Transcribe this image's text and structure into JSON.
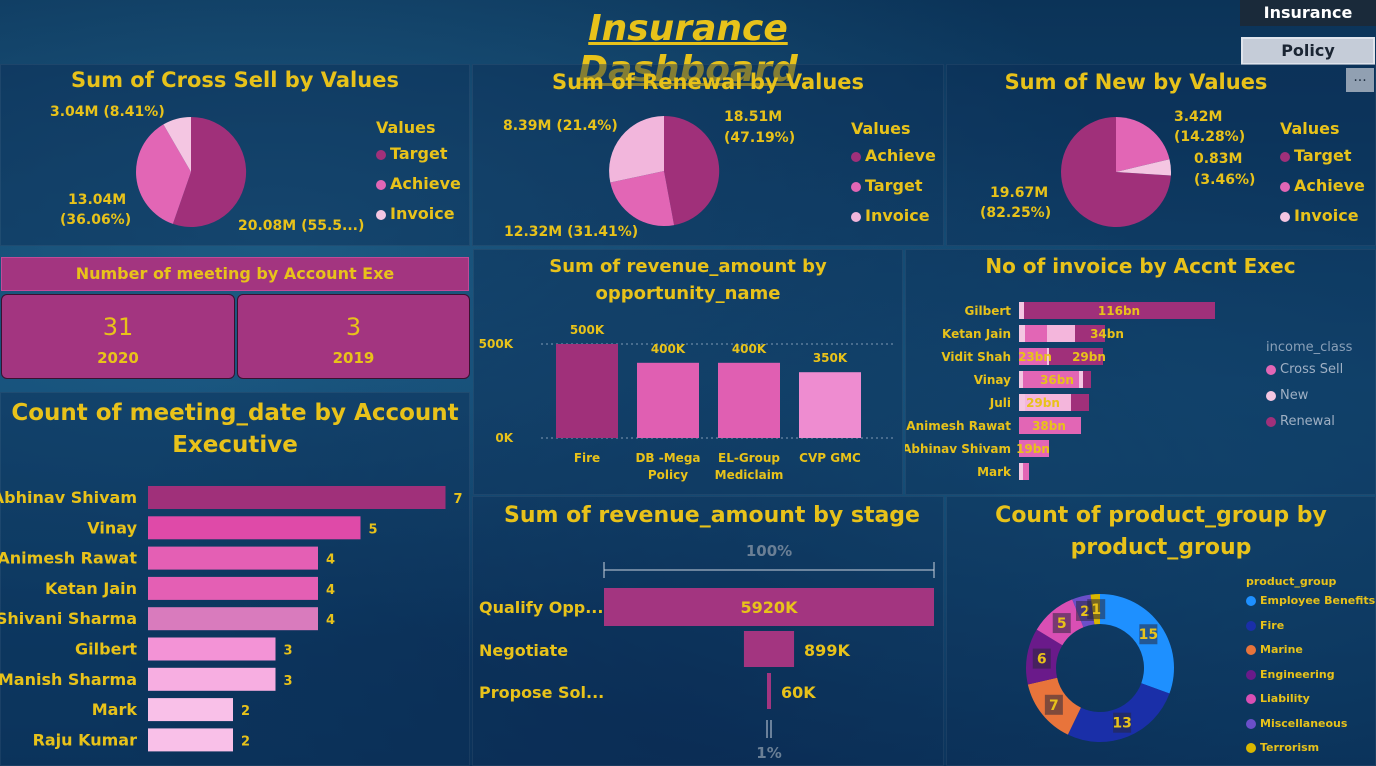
{
  "header": {
    "title": "Insurance Dashboard"
  },
  "nav": {
    "insurance_label": "Insurance",
    "policy_label": "Policy",
    "more_label": "..."
  },
  "colors": {
    "gold": "#e8c21a",
    "magenta": "#a0307a",
    "pink": "#e266b5",
    "light_pink": "#f4b6dc"
  },
  "cross_sell": {
    "title": "Sum of Cross Sell by Values",
    "legend_title": "Values",
    "legend": [
      "Target",
      "Achieve",
      "Invoice"
    ],
    "labels": {
      "invoice": "3.04M (8.41%)",
      "achieve_a": "13.04M",
      "achieve_b": "(36.06%)",
      "target": "20.08M (55.5...)"
    }
  },
  "renewal": {
    "title": "Sum of Renewal by Values",
    "legend_title": "Values",
    "legend": [
      "Achieve",
      "Target",
      "Invoice"
    ],
    "labels": {
      "invoice": "8.39M (21.4%)",
      "achieve_a": "18.51M",
      "achieve_b": "(47.19%)",
      "target": "12.32M (31.41%)"
    }
  },
  "new_biz": {
    "title": "Sum of New by Values",
    "legend_title": "Values",
    "legend": [
      "Target",
      "Achieve",
      "Invoice"
    ],
    "labels": {
      "achieve_a": "3.42M",
      "achieve_b": "(14.28%)",
      "invoice_a": "0.83M",
      "invoice_b": "(3.46%)",
      "target_a": "19.67M",
      "target_b": "(82.25%)"
    }
  },
  "meetings": {
    "title": "Number of meeting by Account Exe",
    "cards": [
      {
        "value": "31",
        "year": "2020"
      },
      {
        "value": "3",
        "year": "2019"
      }
    ]
  },
  "opportunity": {
    "title_1": "Sum of revenue_amount by",
    "title_2": "opportunity_name",
    "y_ticks": [
      "500K",
      "0K"
    ]
  },
  "invoice_exec": {
    "title": "No of invoice by Accnt Exec",
    "legend_title": "income_class",
    "legend": [
      "Cross Sell",
      "New",
      "Renewal"
    ],
    "rows": [
      {
        "name": "Gilbert",
        "labels": [
          "116bn"
        ]
      },
      {
        "name": "Ketan Jain",
        "labels": [
          "34bn"
        ]
      },
      {
        "name": "Vidit Shah",
        "labels": [
          "23bn",
          "29bn"
        ]
      },
      {
        "name": "Vinay",
        "labels": [
          "36bn"
        ]
      },
      {
        "name": "Juli",
        "labels": [
          "29bn"
        ]
      },
      {
        "name": "Animesh Rawat",
        "labels": [
          "38bn"
        ]
      },
      {
        "name": "Abhinav Shivam",
        "labels": [
          "19bn"
        ]
      },
      {
        "name": "Mark",
        "labels": []
      }
    ]
  },
  "meeting_date": {
    "title_1": "Count of meeting_date by Account",
    "title_2": "Executive"
  },
  "stage": {
    "title": "Sum of revenue_amount by stage",
    "top_pct": "100%",
    "bottom_pct": "1%"
  },
  "product_group": {
    "title_1": "Count of product_group by",
    "title_2": "product_group",
    "legend_title": "product_group"
  },
  "chart_data": [
    {
      "type": "bar",
      "title": "Sum of revenue_amount by opportunity_name",
      "categories": [
        "Fire",
        "DB -Mega Policy",
        "EL-Group Mediclaim",
        "CVP GMC"
      ],
      "values": [
        500000,
        400000,
        400000,
        350000
      ],
      "data_labels": [
        "500K",
        "400K",
        "400K",
        "350K"
      ],
      "ylim": [
        0,
        500000
      ],
      "colors": [
        "#a0307a",
        "#e05fb2",
        "#e05fb2",
        "#ee8cd0"
      ]
    },
    {
      "type": "bar",
      "orientation": "horizontal",
      "title": "Count of meeting_date by Account Executive",
      "categories": [
        "Abhinav Shivam",
        "Vinay",
        "Animesh Rawat",
        "Ketan Jain",
        "Shivani Sharma",
        "Gilbert",
        "Manish Sharma",
        "Mark",
        "Raju Kumar"
      ],
      "values": [
        7,
        5,
        4,
        4,
        4,
        3,
        3,
        2,
        2
      ],
      "colors": [
        "#a0307a",
        "#df4aa8",
        "#e45fb4",
        "#e45fb4",
        "#d97bbd",
        "#f393d6",
        "#f7aee1",
        "#f9c0e8",
        "#f9c0e8"
      ]
    },
    {
      "type": "bar",
      "orientation": "horizontal",
      "title": "Sum of revenue_amount by stage",
      "categories": [
        "Qualify Opp...",
        "Negotiate",
        "Propose Sol..."
      ],
      "values": [
        5920000,
        899000,
        60000
      ],
      "data_labels": [
        "5920K",
        "899K",
        "60K"
      ]
    },
    {
      "type": "pie",
      "title": "Count of product_group by product_group",
      "labels": [
        "Employee Benefits",
        "Fire",
        "Marine",
        "Engineering",
        "Liability",
        "Miscellaneous",
        "Terrorism"
      ],
      "values": [
        15,
        13,
        7,
        6,
        5,
        2,
        1
      ],
      "colors": [
        "#1e90ff",
        "#1a2fa8",
        "#e8743b",
        "#6a1a8a",
        "#d94fb4",
        "#6b4fc9",
        "#d9b700"
      ]
    }
  ]
}
